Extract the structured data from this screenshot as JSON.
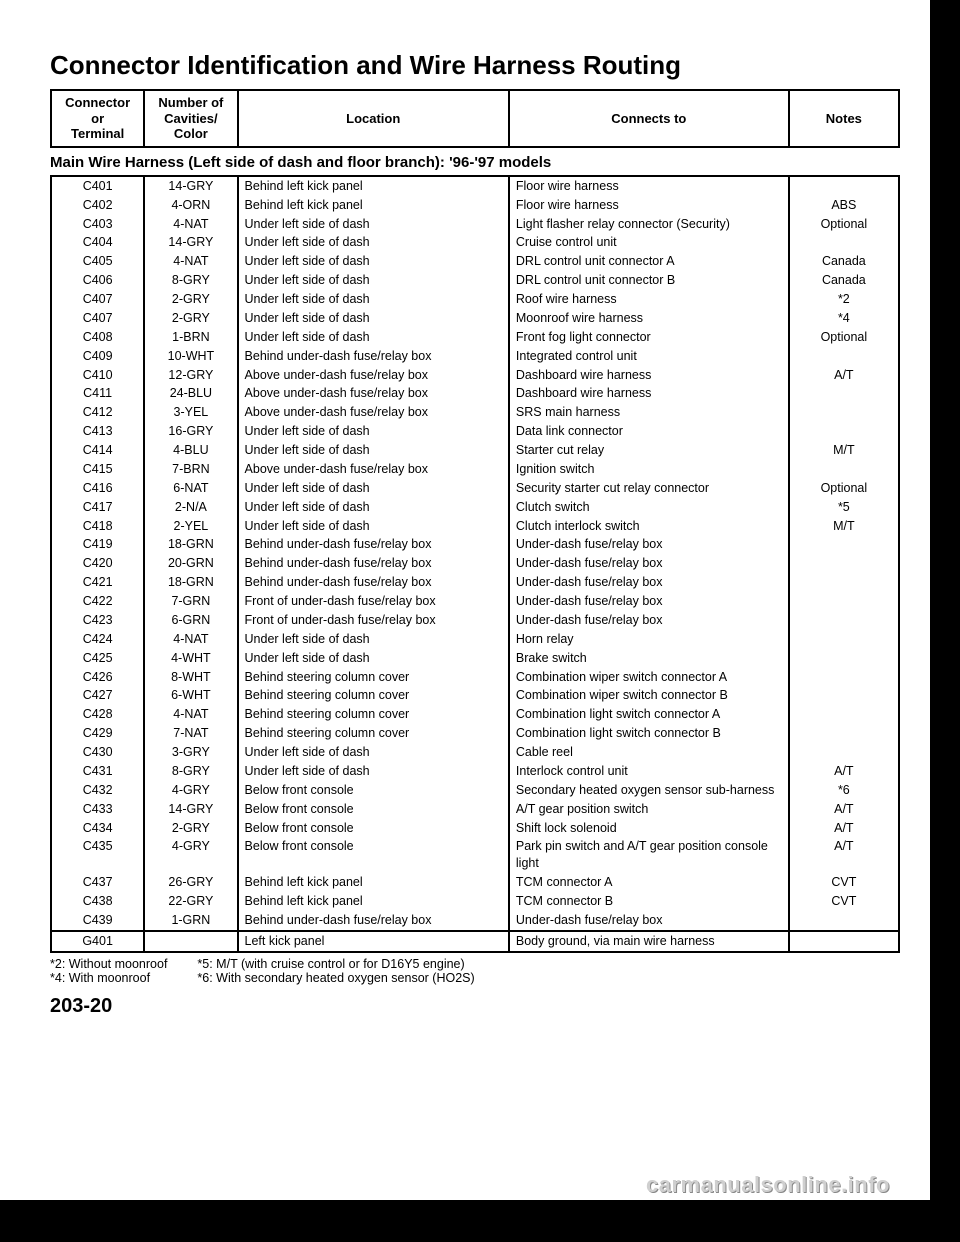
{
  "title": "Connector Identification and Wire Harness Routing",
  "headers": {
    "c0": "Connector\nor\nTerminal",
    "c1": "Number of\nCavities/\nColor",
    "c2": "Location",
    "c3": "Connects to",
    "c4": "Notes"
  },
  "section_title": "Main Wire Harness (Left side of dash and floor branch): '96-'97 models",
  "rows": [
    [
      "C401",
      "14-GRY",
      "Behind left kick panel",
      "Floor wire harness",
      ""
    ],
    [
      "C402",
      "4-ORN",
      "Behind left kick panel",
      "Floor wire harness",
      "ABS"
    ],
    [
      "C403",
      "4-NAT",
      "Under left side of dash",
      "Light flasher relay connector (Security)",
      "Optional"
    ],
    [
      "C404",
      "14-GRY",
      "Under left side of dash",
      "Cruise control unit",
      ""
    ],
    [
      "C405",
      "4-NAT",
      "Under left side of dash",
      "DRL control unit connector A",
      "Canada"
    ],
    [
      "C406",
      "8-GRY",
      "Under left side of dash",
      "DRL control unit connector B",
      "Canada"
    ],
    [
      "C407",
      "2-GRY",
      "Under left side of dash",
      "Roof wire harness",
      "*2"
    ],
    [
      "C407",
      "2-GRY",
      "Under left side of dash",
      "Moonroof wire harness",
      "*4"
    ],
    [
      "C408",
      "1-BRN",
      "Under left side of dash",
      "Front fog light connector",
      "Optional"
    ],
    [
      "C409",
      "10-WHT",
      "Behind under-dash fuse/relay box",
      "Integrated control unit",
      ""
    ],
    [
      "C410",
      "12-GRY",
      "Above under-dash fuse/relay box",
      "Dashboard wire harness",
      "A/T"
    ],
    [
      "C411",
      "24-BLU",
      "Above under-dash fuse/relay box",
      "Dashboard wire harness",
      ""
    ],
    [
      "C412",
      "3-YEL",
      "Above under-dash fuse/relay box",
      "SRS main harness",
      ""
    ],
    [
      "C413",
      "16-GRY",
      "Under left side of dash",
      "Data link connector",
      ""
    ],
    [
      "C414",
      "4-BLU",
      "Under left side of dash",
      "Starter cut relay",
      "M/T"
    ],
    [
      "C415",
      "7-BRN",
      "Above under-dash fuse/relay box",
      "Ignition switch",
      ""
    ],
    [
      "C416",
      "6-NAT",
      "Under left side of dash",
      "Security starter cut relay connector",
      "Optional"
    ],
    [
      "C417",
      "2-N/A",
      "Under left side of dash",
      "Clutch switch",
      "*5"
    ],
    [
      "C418",
      "2-YEL",
      "Under left side of dash",
      "Clutch interlock switch",
      "M/T"
    ],
    [
      "C419",
      "18-GRN",
      "Behind under-dash fuse/relay box",
      "Under-dash fuse/relay box",
      ""
    ],
    [
      "C420",
      "20-GRN",
      "Behind under-dash fuse/relay box",
      "Under-dash fuse/relay box",
      ""
    ],
    [
      "C421",
      "18-GRN",
      "Behind under-dash fuse/relay box",
      "Under-dash fuse/relay box",
      ""
    ],
    [
      "C422",
      "7-GRN",
      "Front of under-dash fuse/relay box",
      "Under-dash fuse/relay box",
      ""
    ],
    [
      "C423",
      "6-GRN",
      "Front of under-dash fuse/relay box",
      "Under-dash fuse/relay box",
      ""
    ],
    [
      "C424",
      "4-NAT",
      "Under left side of dash",
      "Horn relay",
      ""
    ],
    [
      "C425",
      "4-WHT",
      "Under left side of dash",
      "Brake switch",
      ""
    ],
    [
      "C426",
      "8-WHT",
      "Behind steering column cover",
      "Combination wiper switch connector A",
      ""
    ],
    [
      "C427",
      "6-WHT",
      "Behind steering column cover",
      "Combination wiper switch connector B",
      ""
    ],
    [
      "C428",
      "4-NAT",
      "Behind steering column cover",
      "Combination light switch connector A",
      ""
    ],
    [
      "C429",
      "7-NAT",
      "Behind steering column cover",
      "Combination light switch connector B",
      ""
    ],
    [
      "C430",
      "3-GRY",
      "Under left side of dash",
      "Cable reel",
      ""
    ],
    [
      "C431",
      "8-GRY",
      "Under left side of dash",
      "Interlock control unit",
      "A/T"
    ],
    [
      "C432",
      "4-GRY",
      "Below front console",
      "Secondary heated oxygen sensor sub-harness",
      "*6"
    ],
    [
      "C433",
      "14-GRY",
      "Below front console",
      "A/T gear position switch",
      "A/T"
    ],
    [
      "C434",
      "2-GRY",
      "Below front console",
      "Shift lock solenoid",
      "A/T"
    ],
    [
      "C435",
      "4-GRY",
      "Below front console",
      "Park pin switch and A/T gear position console light",
      "A/T"
    ],
    [
      "C437",
      "26-GRY",
      "Behind left kick panel",
      "TCM connector A",
      "CVT"
    ],
    [
      "C438",
      "22-GRY",
      "Behind left kick panel",
      "TCM connector B",
      "CVT"
    ],
    [
      "C439",
      "1-GRN",
      "Behind under-dash fuse/relay box",
      "Under-dash fuse/relay box",
      ""
    ]
  ],
  "rows2": [
    [
      "G401",
      "",
      "Left kick panel",
      "Body ground, via main wire harness",
      ""
    ]
  ],
  "footnotes": {
    "a1": "*2: Without moonroof",
    "a2": "*4: With moonroof",
    "b1": "*5: M/T (with cruise control or for D16Y5 engine)",
    "b2": "*6: With secondary heated oxygen sensor (HO2S)"
  },
  "page_num": "203-20",
  "watermark": "carmanualsonline.info"
}
